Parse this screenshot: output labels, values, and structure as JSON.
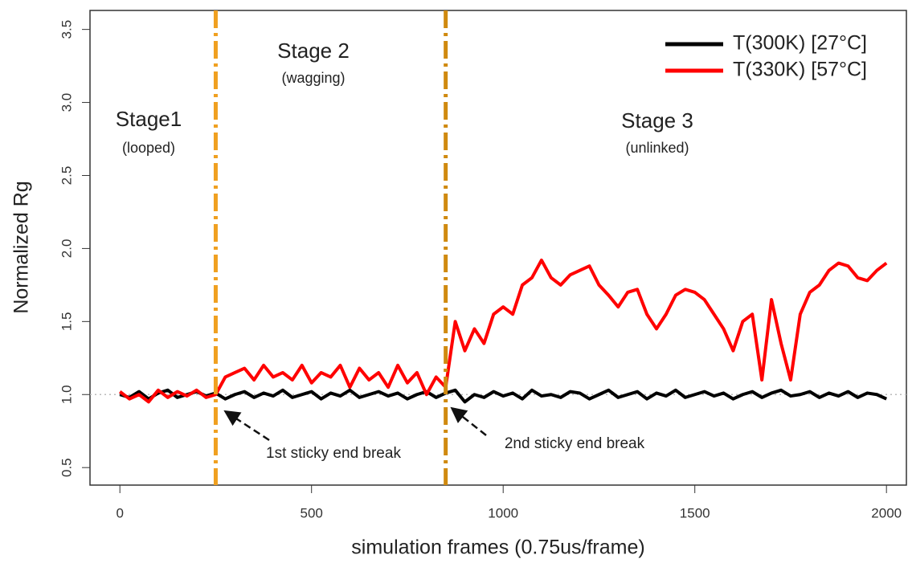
{
  "chart_data": {
    "type": "line",
    "xlabel": "simulation frames (0.75us/frame)",
    "ylabel": "Normalized Rg",
    "xlim": [
      -78,
      2052
    ],
    "ylim": [
      0.38,
      3.63
    ],
    "xticks": [
      0,
      500,
      1000,
      1500,
      2000
    ],
    "yticks": [
      0.5,
      {
        "value": 1,
        "label": "1.0"
      },
      1.5,
      {
        "value": 2,
        "label": "2.0"
      },
      2.5,
      {
        "value": 3,
        "label": "3.0"
      },
      3.5
    ],
    "legend": "upper right",
    "reference_line": 1,
    "vlines": [
      {
        "value": 250,
        "color": "#f0a020"
      },
      {
        "value": 850,
        "color": "#d08a10"
      }
    ],
    "x": [
      0,
      25,
      50,
      75,
      100,
      125,
      150,
      175,
      200,
      225,
      250,
      275,
      300,
      325,
      350,
      375,
      400,
      425,
      450,
      475,
      500,
      525,
      550,
      575,
      600,
      625,
      650,
      675,
      700,
      725,
      750,
      775,
      800,
      825,
      850,
      875,
      900,
      925,
      950,
      975,
      1000,
      1025,
      1050,
      1075,
      1100,
      1125,
      1150,
      1175,
      1200,
      1225,
      1250,
      1275,
      1300,
      1325,
      1350,
      1375,
      1400,
      1425,
      1450,
      1475,
      1500,
      1525,
      1550,
      1575,
      1600,
      1625,
      1650,
      1675,
      1700,
      1725,
      1750,
      1775,
      1800,
      1825,
      1850,
      1875,
      1900,
      1925,
      1950,
      1975,
      2000
    ],
    "series": [
      {
        "name": "T(300K) [27°C]",
        "color": "#000000",
        "values": [
          1.0,
          0.98,
          1.02,
          0.97,
          1.01,
          1.03,
          0.98,
          1.0,
          1.02,
          0.99,
          1.01,
          0.97,
          1.0,
          1.02,
          0.98,
          1.01,
          0.99,
          1.03,
          0.98,
          1.0,
          1.02,
          0.97,
          1.01,
          0.99,
          1.03,
          0.98,
          1.0,
          1.02,
          0.99,
          1.01,
          0.97,
          1.0,
          1.02,
          0.98,
          1.01,
          1.03,
          0.95,
          1.0,
          0.98,
          1.02,
          0.99,
          1.01,
          0.97,
          1.03,
          0.99,
          1.0,
          0.98,
          1.02,
          1.01,
          0.97,
          1.0,
          1.03,
          0.98,
          1.0,
          1.02,
          0.97,
          1.01,
          0.99,
          1.03,
          0.98,
          1.0,
          1.02,
          0.99,
          1.01,
          0.97,
          1.0,
          1.02,
          0.98,
          1.01,
          1.03,
          0.99,
          1.0,
          1.02,
          0.98,
          1.01,
          0.99,
          1.02,
          0.98,
          1.01,
          1.0,
          0.97
        ]
      },
      {
        "name": "T(330K) [57°C]",
        "color": "#ff0000",
        "values": [
          1.02,
          0.97,
          1.0,
          0.95,
          1.03,
          0.98,
          1.02,
          0.99,
          1.03,
          0.98,
          1.0,
          1.12,
          1.15,
          1.18,
          1.1,
          1.2,
          1.12,
          1.15,
          1.1,
          1.2,
          1.08,
          1.15,
          1.12,
          1.2,
          1.05,
          1.18,
          1.1,
          1.15,
          1.05,
          1.2,
          1.08,
          1.15,
          1.0,
          1.12,
          1.05,
          1.5,
          1.3,
          1.45,
          1.35,
          1.55,
          1.6,
          1.55,
          1.75,
          1.8,
          1.92,
          1.8,
          1.75,
          1.82,
          1.85,
          1.88,
          1.75,
          1.68,
          1.6,
          1.7,
          1.72,
          1.55,
          1.45,
          1.55,
          1.68,
          1.72,
          1.7,
          1.65,
          1.55,
          1.45,
          1.3,
          1.5,
          1.55,
          1.1,
          1.65,
          1.35,
          1.1,
          1.55,
          1.7,
          1.75,
          1.85,
          1.9,
          1.88,
          1.8,
          1.78,
          1.85,
          1.9
        ]
      }
    ],
    "annotations": [
      "Stage1",
      "(looped)",
      "Stage 2",
      "(wagging)",
      "Stage 3",
      "(unlinked)",
      "1st sticky end break",
      "2nd sticky end break"
    ]
  }
}
